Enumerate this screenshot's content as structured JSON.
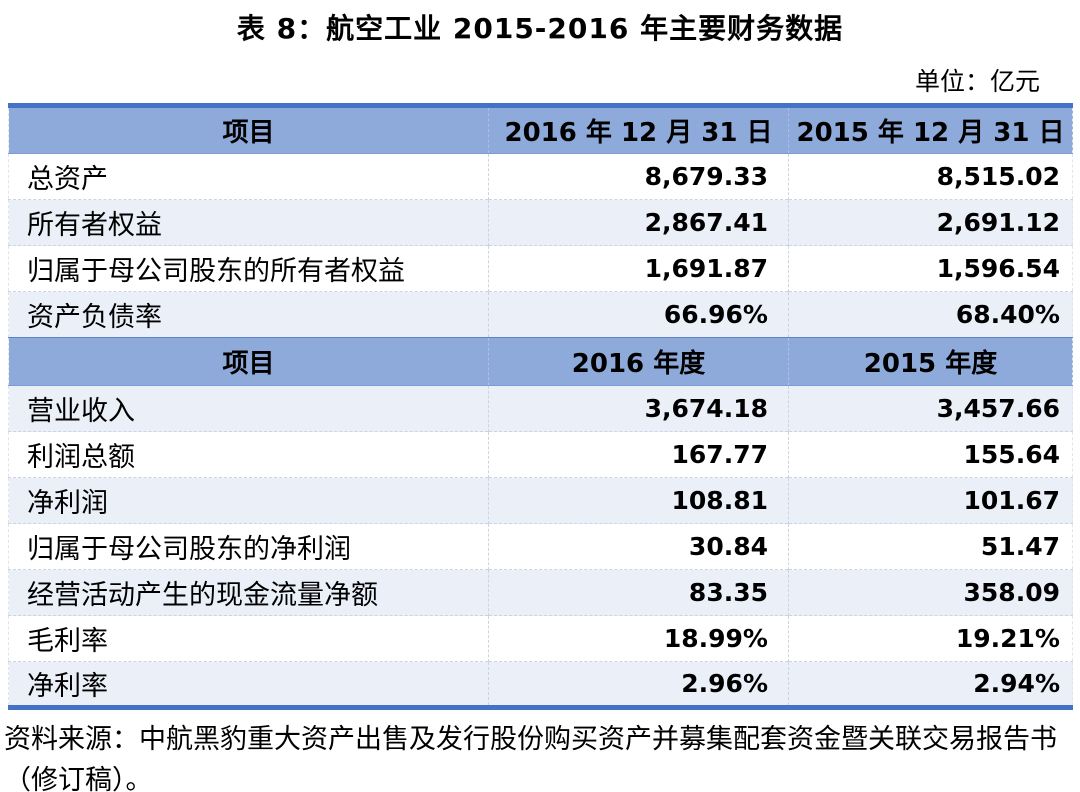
{
  "title": "表 8：航空工业 2015-2016 年主要财务数据",
  "unit_note": "单位：亿元",
  "source_note": "资料来源：中航黑豹重大资产出售及发行股份购买资产并募集配套资金暨关联交易报告书（修订稿）。",
  "colors": {
    "table_border": "#4472C4",
    "header_bg": "#8EAADB",
    "stripe_bg": "#EAEFF8",
    "text": "#000000"
  },
  "table": {
    "balance_sheet": {
      "headers": [
        "项目",
        "2016 年 12 月 31 日",
        "2015 年 12 月 31 日"
      ],
      "rows": [
        {
          "label": "总资产",
          "v2016": "8,679.33",
          "v2015": "8,515.02"
        },
        {
          "label": "所有者权益",
          "v2016": "2,867.41",
          "v2015": "2,691.12"
        },
        {
          "label": "归属于母公司股东的所有者权益",
          "v2016": "1,691.87",
          "v2015": "1,596.54"
        },
        {
          "label": "资产负债率",
          "v2016": "66.96%",
          "v2015": "68.40%"
        }
      ]
    },
    "income_statement": {
      "headers": [
        "项目",
        "2016 年度",
        "2015 年度"
      ],
      "rows": [
        {
          "label": "营业收入",
          "v2016": "3,674.18",
          "v2015": "3,457.66"
        },
        {
          "label": "利润总额",
          "v2016": "167.77",
          "v2015": "155.64"
        },
        {
          "label": "净利润",
          "v2016": "108.81",
          "v2015": "101.67"
        },
        {
          "label": "归属于母公司股东的净利润",
          "v2016": "30.84",
          "v2015": "51.47"
        },
        {
          "label": "经营活动产生的现金流量净额",
          "v2016": "83.35",
          "v2015": "358.09"
        },
        {
          "label": "毛利率",
          "v2016": "18.99%",
          "v2015": "19.21%"
        },
        {
          "label": "净利率",
          "v2016": "2.96%",
          "v2015": "2.94%"
        }
      ]
    }
  }
}
